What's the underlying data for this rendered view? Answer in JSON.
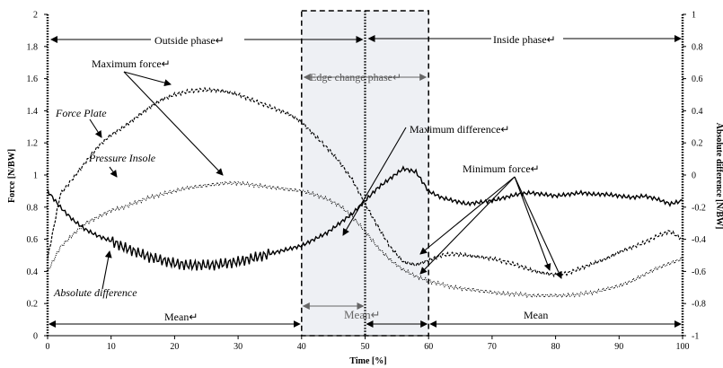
{
  "chart_data": {
    "type": "line",
    "xlabel": "Time [%]",
    "ylabel": "Force [N/BW]",
    "y2label": "Absolute difference [N/BW]",
    "xlim": [
      0,
      100
    ],
    "ylim": [
      0,
      2
    ],
    "y2lim": [
      -1,
      1
    ],
    "grid": false,
    "x_ticks": [
      "0",
      "10",
      "20",
      "30",
      "40",
      "50",
      "60",
      "70",
      "80",
      "90",
      "100"
    ],
    "y_ticks": [
      "0",
      "0.2",
      "0.4",
      "0.6",
      "0.8",
      "1",
      "1.2",
      "1.4",
      "1.6",
      "1.8",
      "2"
    ],
    "y2_ticks": [
      "-1",
      "-0.8",
      "-0.6",
      "-0.4",
      "-0.2",
      "0",
      "0.2",
      "0.4",
      "0.6",
      "0.8",
      "1"
    ],
    "series": [
      {
        "name": "Force Plate",
        "axis": "left",
        "style": "dashed",
        "x": [
          0,
          2,
          4,
          6,
          8,
          10,
          12,
          14,
          16,
          18,
          20,
          22,
          24,
          26,
          28,
          30,
          32,
          34,
          36,
          38,
          40,
          42,
          44,
          46,
          48,
          50,
          52,
          54,
          56,
          58,
          60,
          62,
          64,
          66,
          68,
          70,
          72,
          74,
          76,
          78,
          80,
          82,
          84,
          86,
          88,
          90,
          92,
          94,
          96,
          98,
          100
        ],
        "y": [
          0.48,
          0.88,
          0.98,
          1.08,
          1.18,
          1.25,
          1.3,
          1.36,
          1.42,
          1.47,
          1.5,
          1.52,
          1.53,
          1.53,
          1.52,
          1.5,
          1.47,
          1.44,
          1.41,
          1.38,
          1.33,
          1.25,
          1.17,
          1.08,
          0.97,
          0.82,
          0.68,
          0.55,
          0.46,
          0.44,
          0.47,
          0.5,
          0.51,
          0.5,
          0.49,
          0.48,
          0.46,
          0.44,
          0.41,
          0.39,
          0.38,
          0.39,
          0.42,
          0.45,
          0.48,
          0.52,
          0.55,
          0.58,
          0.62,
          0.65,
          0.6
        ]
      },
      {
        "name": "Pressure Insole",
        "axis": "left",
        "style": "dotted",
        "x": [
          0,
          2,
          4,
          6,
          8,
          10,
          12,
          14,
          16,
          18,
          20,
          22,
          24,
          26,
          28,
          30,
          32,
          34,
          36,
          38,
          40,
          42,
          44,
          46,
          48,
          50,
          52,
          54,
          56,
          58,
          60,
          62,
          64,
          66,
          68,
          70,
          72,
          74,
          76,
          78,
          80,
          82,
          84,
          86,
          88,
          90,
          92,
          94,
          96,
          98,
          100
        ],
        "y": [
          0.4,
          0.55,
          0.63,
          0.7,
          0.74,
          0.78,
          0.8,
          0.83,
          0.86,
          0.88,
          0.9,
          0.92,
          0.93,
          0.94,
          0.95,
          0.95,
          0.94,
          0.93,
          0.92,
          0.91,
          0.9,
          0.88,
          0.85,
          0.81,
          0.74,
          0.65,
          0.55,
          0.47,
          0.41,
          0.37,
          0.34,
          0.32,
          0.3,
          0.29,
          0.28,
          0.27,
          0.26,
          0.26,
          0.25,
          0.25,
          0.25,
          0.25,
          0.26,
          0.27,
          0.29,
          0.31,
          0.34,
          0.38,
          0.42,
          0.45,
          0.48
        ]
      },
      {
        "name": "Absolute difference",
        "axis": "right",
        "style": "solid",
        "x": [
          0,
          2,
          4,
          6,
          8,
          10,
          12,
          14,
          16,
          18,
          20,
          22,
          24,
          26,
          28,
          30,
          32,
          34,
          36,
          38,
          40,
          42,
          44,
          46,
          48,
          50,
          52,
          54,
          56,
          58,
          60,
          62,
          64,
          66,
          68,
          70,
          72,
          74,
          76,
          78,
          80,
          82,
          84,
          86,
          88,
          90,
          92,
          94,
          96,
          98,
          100
        ],
        "y": [
          -0.1,
          -0.2,
          -0.28,
          -0.34,
          -0.38,
          -0.41,
          -0.45,
          -0.48,
          -0.51,
          -0.53,
          -0.55,
          -0.56,
          -0.56,
          -0.56,
          -0.55,
          -0.54,
          -0.52,
          -0.5,
          -0.48,
          -0.46,
          -0.44,
          -0.4,
          -0.36,
          -0.3,
          -0.24,
          -0.16,
          -0.08,
          -0.02,
          0.04,
          0.02,
          -0.1,
          -0.14,
          -0.16,
          -0.18,
          -0.17,
          -0.16,
          -0.14,
          -0.12,
          -0.11,
          -0.12,
          -0.13,
          -0.12,
          -0.11,
          -0.12,
          -0.12,
          -0.13,
          -0.14,
          -0.13,
          -0.15,
          -0.18,
          -0.16
        ]
      }
    ],
    "annotations": {
      "outside_phase": "Outside phase↵",
      "inside_phase": "Inside phase↵",
      "edge_change_phase": "Edge change phase↵",
      "maximum_force": "Maximum force↵",
      "maximum_difference": "Maximum difference↵",
      "minimum_force": "Minimum force↵",
      "force_plate_label": "Force Plate",
      "pressure_insole_label": "Pressure Insole",
      "absolute_difference_label": "Absolute difference",
      "mean_left": "Mean↵",
      "mean_center": "Mean↵",
      "mean_right": "Mean"
    },
    "edge_change_region": [
      40,
      60
    ],
    "divider_x": 50
  }
}
